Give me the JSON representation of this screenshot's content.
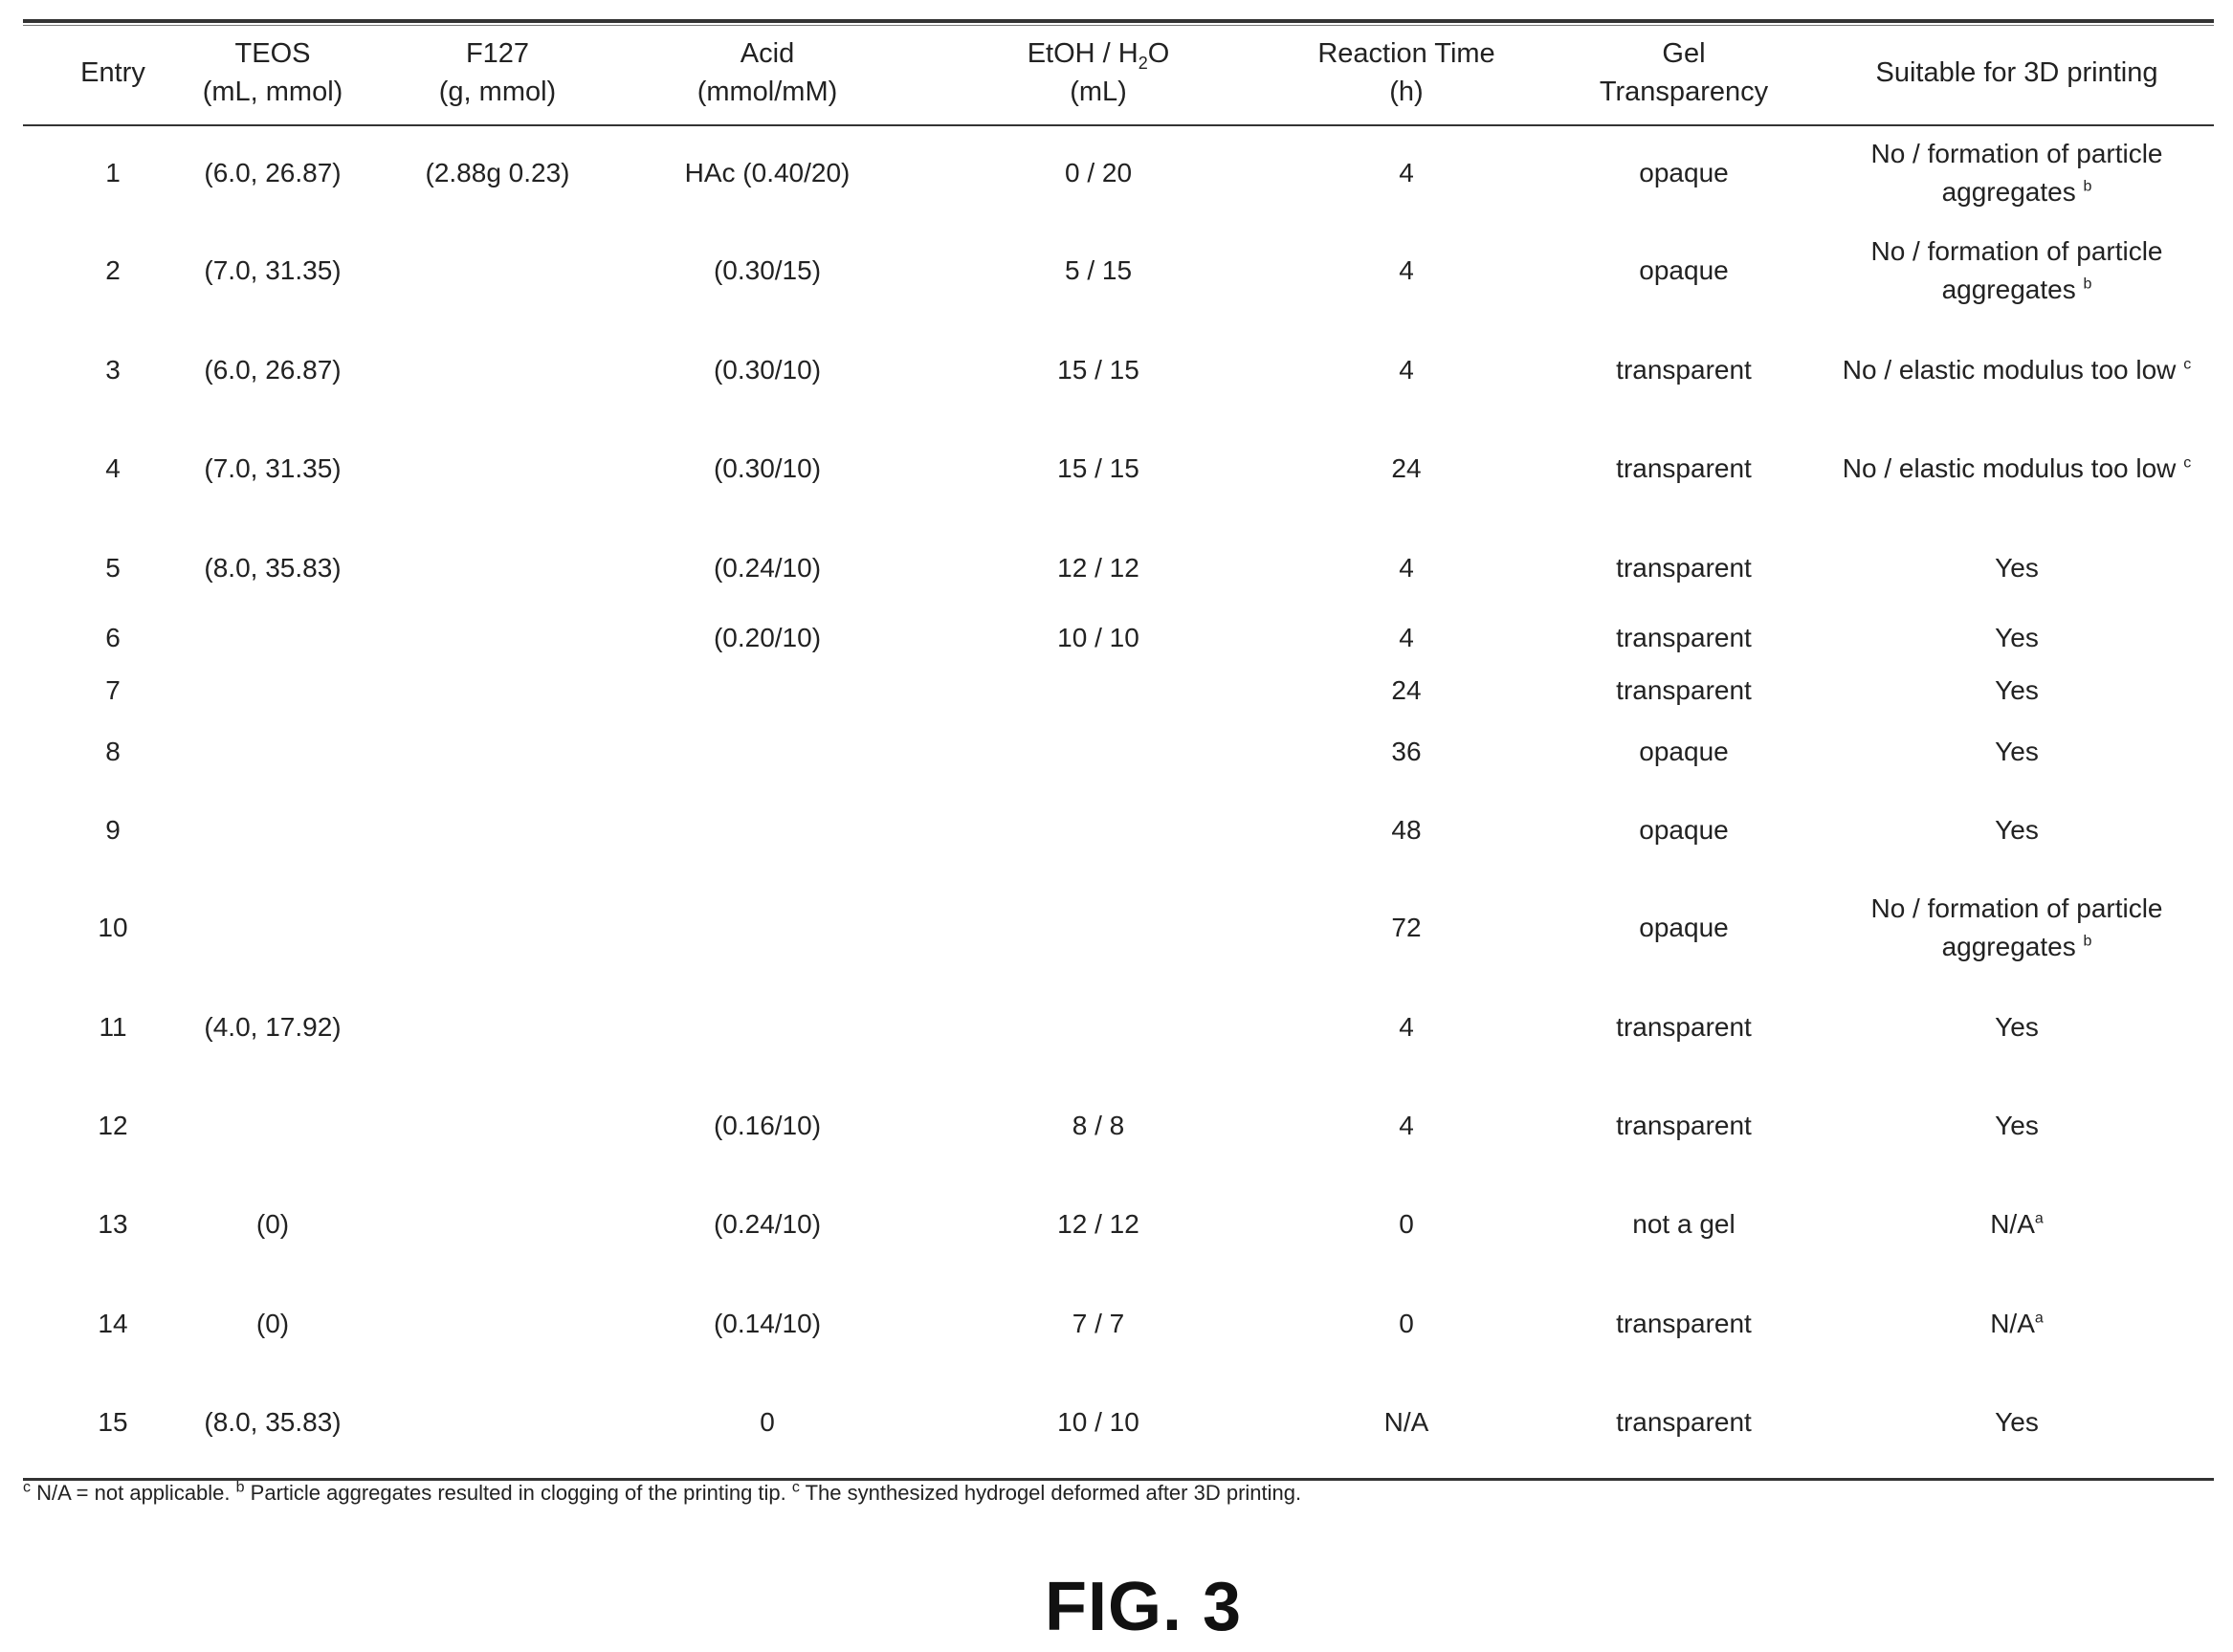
{
  "table": {
    "headers": [
      {
        "line1": "Entry",
        "line2": ""
      },
      {
        "line1": "TEOS",
        "line2": "(mL, mmol)"
      },
      {
        "line1": "F127",
        "line2": "(g, mmol)"
      },
      {
        "line1": "Acid",
        "line2": "(mmol/mM)"
      },
      {
        "line1": "EtOH / H",
        "sub": "2",
        "line1b": "O",
        "line2": "(mL)"
      },
      {
        "line1": "Reaction Time",
        "line2": "(h)"
      },
      {
        "line1": "Gel",
        "line2": "Transparency"
      },
      {
        "line1": "Suitable for 3D printing",
        "line2": ""
      }
    ],
    "rows": [
      {
        "entry": "1",
        "teos": "(6.0, 26.87)",
        "f127": "(2.88g 0.23)",
        "acid": "HAc (0.40/20)",
        "etoh_h2o": "0 / 20",
        "time": "4",
        "gel": "opaque",
        "suitable": "No / formation of particle aggregates",
        "sup": "b"
      },
      {
        "entry": "2",
        "teos": "(7.0, 31.35)",
        "f127": "",
        "acid": "(0.30/15)",
        "etoh_h2o": "5 / 15",
        "time": "4",
        "gel": "opaque",
        "suitable": "No / formation of particle aggregates",
        "sup": "b"
      },
      {
        "entry": "3",
        "teos": "(6.0, 26.87)",
        "f127": "",
        "acid": "(0.30/10)",
        "etoh_h2o": "15 / 15",
        "time": "4",
        "gel": "transparent",
        "suitable": "No / elastic modulus too low",
        "sup": "c"
      },
      {
        "entry": "4",
        "teos": "(7.0, 31.35)",
        "f127": "",
        "acid": "(0.30/10)",
        "etoh_h2o": "15 / 15",
        "time": "24",
        "gel": "transparent",
        "suitable": "No / elastic modulus too low",
        "sup": "c"
      },
      {
        "entry": "5",
        "teos": "(8.0, 35.83)",
        "f127": "",
        "acid": "(0.24/10)",
        "etoh_h2o": "12 / 12",
        "time": "4",
        "gel": "transparent",
        "suitable": "Yes",
        "sup": ""
      },
      {
        "entry": "6",
        "teos": "",
        "f127": "",
        "acid": "(0.20/10)",
        "etoh_h2o": "10 / 10",
        "time": "4",
        "gel": "transparent",
        "suitable": "Yes",
        "sup": ""
      },
      {
        "entry": "7",
        "teos": "",
        "f127": "",
        "acid": "",
        "etoh_h2o": "",
        "time": "24",
        "gel": "transparent",
        "suitable": "Yes",
        "sup": ""
      },
      {
        "entry": "8",
        "teos": "",
        "f127": "",
        "acid": "",
        "etoh_h2o": "",
        "time": "36",
        "gel": "opaque",
        "suitable": "Yes",
        "sup": ""
      },
      {
        "entry": "9",
        "teos": "",
        "f127": "",
        "acid": "",
        "etoh_h2o": "",
        "time": "48",
        "gel": "opaque",
        "suitable": "Yes",
        "sup": ""
      },
      {
        "entry": "10",
        "teos": "",
        "f127": "",
        "acid": "",
        "etoh_h2o": "",
        "time": "72",
        "gel": "opaque",
        "suitable": "No / formation of particle aggregates",
        "sup": "b"
      },
      {
        "entry": "11",
        "teos": "(4.0, 17.92)",
        "f127": "",
        "acid": "",
        "etoh_h2o": "",
        "time": "4",
        "gel": "transparent",
        "suitable": "Yes",
        "sup": ""
      },
      {
        "entry": "12",
        "teos": "",
        "f127": "",
        "acid": "(0.16/10)",
        "etoh_h2o": "8 / 8",
        "time": "4",
        "gel": "transparent",
        "suitable": "Yes",
        "sup": ""
      },
      {
        "entry": "13",
        "teos": "(0)",
        "f127": "",
        "acid": "(0.24/10)",
        "etoh_h2o": "12 / 12",
        "time": "0",
        "gel": "not a gel",
        "suitable": "N/A",
        "sup": "a"
      },
      {
        "entry": "14",
        "teos": "(0)",
        "f127": "",
        "acid": "(0.14/10)",
        "etoh_h2o": "7 / 7",
        "time": "0",
        "gel": "transparent",
        "suitable": "N/A",
        "sup": "a"
      },
      {
        "entry": "15",
        "teos": "(8.0, 35.83)",
        "f127": "",
        "acid": "0",
        "etoh_h2o": "10 / 10",
        "time": "N/A",
        "gel": "transparent",
        "suitable": "Yes",
        "sup": ""
      }
    ]
  },
  "footnote": {
    "a_mark": "c",
    "a_text": " N/A = not applicable. ",
    "b_mark": "b",
    "b_text": " Particle aggregates resulted in clogging of the printing tip. ",
    "c_mark": "c",
    "c_text": " The synthesized hydrogel deformed after 3D printing."
  },
  "figure_label": "FIG. 3"
}
